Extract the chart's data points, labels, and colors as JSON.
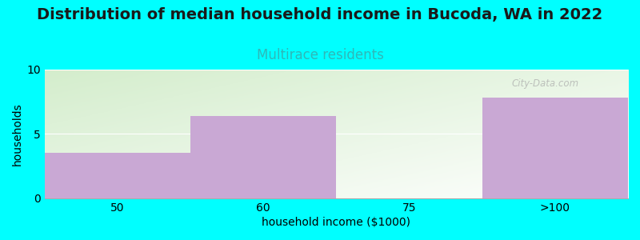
{
  "title": "Distribution of median household income in Bucoda, WA in 2022",
  "subtitle": "Multirace residents",
  "xlabel": "household income ($1000)",
  "ylabel": "households",
  "background_color": "#00FFFF",
  "bar_color": "#C9A8D4",
  "categories": [
    "50",
    "60",
    "75",
    ">100"
  ],
  "values": [
    3.5,
    6.4,
    0,
    7.8
  ],
  "ylim": [
    0,
    10
  ],
  "yticks": [
    0,
    5,
    10
  ],
  "title_fontsize": 14,
  "title_color": "#1a1a1a",
  "subtitle_fontsize": 12,
  "subtitle_color": "#2EB8B8",
  "axis_label_fontsize": 10,
  "tick_fontsize": 10,
  "watermark": "City-Data.com"
}
